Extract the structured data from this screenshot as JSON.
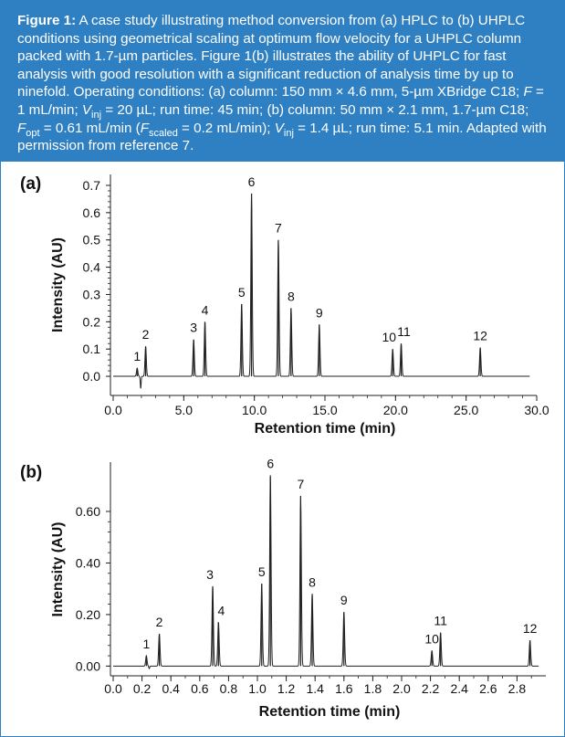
{
  "caption": {
    "lead": "Figure 1:",
    "segments": [
      {
        "t": " A case study illustrating method conversion from (a) HPLC to (b) UHPLC conditions using geometrical scaling at optimum flow velocity for a UHPLC column packed with 1.7-µm particles. Figure 1(b) illustrates the ability of UHPLC for fast analysis with good resolution with a significant reduction of analysis time by up to ninefold. Operating conditions: (a) column: 150 mm × 4.6 mm, 5-µm XBridge C18; "
      },
      {
        "t": "F",
        "i": true
      },
      {
        "t": " = 1 mL/min; "
      },
      {
        "t": "V",
        "i": true
      },
      {
        "t": "inj",
        "sub": true
      },
      {
        "t": " = 20 µL; run time: 45 min; (b) column: 50 mm × 2.1 mm, 1.7-µm C18; "
      },
      {
        "t": "F",
        "i": true
      },
      {
        "t": "opt",
        "sub": true
      },
      {
        "t": " = 0.61 mL/min ("
      },
      {
        "t": "F",
        "i": true
      },
      {
        "t": "scaled",
        "sub": true
      },
      {
        "t": " = 0.2 mL/min); "
      },
      {
        "t": "V",
        "i": true
      },
      {
        "t": "inj",
        "sub": true
      },
      {
        "t": " = 1.4 µL; run time: 5.1 min. Adapted with permission from reference 7."
      }
    ]
  },
  "colors": {
    "caption_bg": "#2f7fc3",
    "frame": "#2b7fc4",
    "trace": "#222222"
  },
  "chart_data": [
    {
      "panel": "(a)",
      "type": "line",
      "xlabel": "Retention time (min)",
      "ylabel": "Intensity (AU)",
      "xlim": [
        0,
        30
      ],
      "ylim": [
        -0.05,
        0.72
      ],
      "xticks": [
        0,
        5,
        10,
        15,
        20,
        25,
        30
      ],
      "xtick_labels": [
        "0.0",
        "5.0",
        "10.0",
        "15.0",
        "20.0",
        "25.0",
        "30.0"
      ],
      "yticks": [
        0,
        0.1,
        0.2,
        0.3,
        0.4,
        0.5,
        0.6,
        0.7
      ],
      "ytick_labels": [
        "0.0",
        "0.1",
        "0.2",
        "0.3",
        "0.4",
        "0.5",
        "0.6",
        "0.7"
      ],
      "x_end": 29.5,
      "baseline": 0,
      "peaks": [
        {
          "label": "1",
          "x": 1.7,
          "y": 0.03
        },
        {
          "label": "2",
          "x": 2.3,
          "y": 0.11
        },
        {
          "label": "3",
          "x": 5.7,
          "y": 0.135
        },
        {
          "label": "4",
          "x": 6.5,
          "y": 0.2
        },
        {
          "label": "5",
          "x": 9.1,
          "y": 0.265
        },
        {
          "label": "6",
          "x": 9.8,
          "y": 0.67
        },
        {
          "label": "7",
          "x": 11.7,
          "y": 0.5
        },
        {
          "label": "8",
          "x": 12.6,
          "y": 0.25
        },
        {
          "label": "9",
          "x": 14.6,
          "y": 0.19
        },
        {
          "label": "10",
          "x": 19.8,
          "y": 0.1
        },
        {
          "label": "11",
          "x": 20.4,
          "y": 0.12
        },
        {
          "label": "12",
          "x": 26.0,
          "y": 0.105
        }
      ],
      "dips": [
        {
          "x": 1.95,
          "y": -0.045
        }
      ]
    },
    {
      "panel": "(b)",
      "type": "line",
      "xlabel": "Retention time (min)",
      "ylabel": "Intensity (AU)",
      "xlim": [
        0,
        3.0
      ],
      "ylim": [
        -0.02,
        0.77
      ],
      "xticks": [
        0,
        0.2,
        0.4,
        0.6,
        0.8,
        1.0,
        1.2,
        1.4,
        1.6,
        1.8,
        2.0,
        2.2,
        2.4,
        2.6,
        2.8
      ],
      "xtick_labels": [
        "0.0",
        "0.2",
        "0.4",
        "0.6",
        "0.8",
        "1.0",
        "1.2",
        "1.4",
        "1.6",
        "1.8",
        "2.0",
        "2.2",
        "2.4",
        "2.6",
        "2.8"
      ],
      "yticks": [
        0,
        0.2,
        0.4,
        0.6
      ],
      "ytick_labels": [
        "0.00",
        "0.20",
        "0.40",
        "0.60"
      ],
      "x_end": 2.95,
      "baseline": 0,
      "peaks": [
        {
          "label": "1",
          "x": 0.23,
          "y": 0.04
        },
        {
          "label": "2",
          "x": 0.32,
          "y": 0.125
        },
        {
          "label": "3",
          "x": 0.69,
          "y": 0.31
        },
        {
          "label": "4",
          "x": 0.73,
          "y": 0.17
        },
        {
          "label": "5",
          "x": 1.03,
          "y": 0.32
        },
        {
          "label": "6",
          "x": 1.09,
          "y": 0.74
        },
        {
          "label": "7",
          "x": 1.3,
          "y": 0.66
        },
        {
          "label": "8",
          "x": 1.38,
          "y": 0.28
        },
        {
          "label": "9",
          "x": 1.6,
          "y": 0.21
        },
        {
          "label": "10",
          "x": 2.21,
          "y": 0.06
        },
        {
          "label": "11",
          "x": 2.27,
          "y": 0.13
        },
        {
          "label": "12",
          "x": 2.89,
          "y": 0.1
        }
      ],
      "dips": [
        {
          "x": 0.25,
          "y": -0.01
        }
      ]
    }
  ]
}
